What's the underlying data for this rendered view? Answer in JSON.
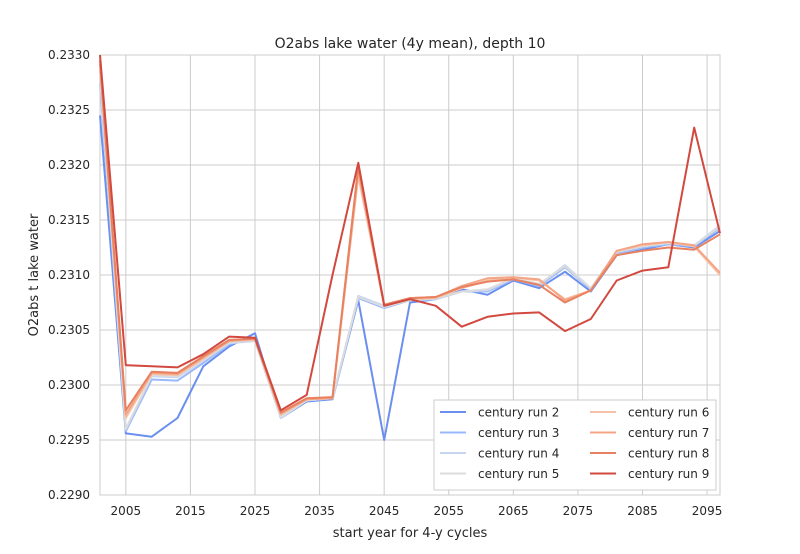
{
  "chart_data": {
    "type": "line",
    "title": "O2abs lake water (4y mean), depth 10",
    "xlabel": "start year for 4-y cycles",
    "ylabel": "O2abs t lake water",
    "xlim": [
      2001,
      2097
    ],
    "ylim": [
      0.229,
      0.233
    ],
    "x_ticks": [
      2005,
      2015,
      2025,
      2035,
      2045,
      2055,
      2065,
      2075,
      2085,
      2095
    ],
    "y_ticks": [
      0.229,
      0.2295,
      0.23,
      0.2305,
      0.231,
      0.2315,
      0.232,
      0.2325,
      0.233
    ],
    "x_tick_labels": [
      "2005",
      "2015",
      "2025",
      "2035",
      "2045",
      "2055",
      "2065",
      "2075",
      "2085",
      "2095"
    ],
    "y_tick_labels": [
      "0.2290",
      "0.2295",
      "0.2300",
      "0.2305",
      "0.2310",
      "0.2315",
      "0.2320",
      "0.2325",
      "0.2330"
    ],
    "grid": true,
    "legend_position": "lower-right",
    "legend_columns": 2,
    "x": [
      2001,
      2005,
      2009,
      2013,
      2017,
      2021,
      2025,
      2029,
      2033,
      2037,
      2041,
      2045,
      2049,
      2053,
      2057,
      2061,
      2065,
      2069,
      2073,
      2077,
      2081,
      2085,
      2089,
      2093,
      2097
    ],
    "series": [
      {
        "name": "century run 2",
        "color": "#6a8fef",
        "values": [
          0.23245,
          0.22956,
          0.22953,
          0.2297,
          0.23017,
          0.23035,
          0.23047,
          0.2297,
          0.22985,
          0.22987,
          0.23077,
          0.2295,
          0.23075,
          0.23078,
          0.23087,
          0.23082,
          0.23095,
          0.23088,
          0.23103,
          0.23085,
          0.23118,
          0.23123,
          0.23128,
          0.23125,
          0.2314
        ]
      },
      {
        "name": "century run 3",
        "color": "#9ab8fb",
        "values": [
          0.23275,
          0.22958,
          0.23005,
          0.23004,
          0.2302,
          0.23037,
          0.23043,
          0.22972,
          0.22986,
          0.22988,
          0.23079,
          0.2307,
          0.23077,
          0.23078,
          0.23085,
          0.23085,
          0.23096,
          0.2309,
          0.23107,
          0.23087,
          0.2312,
          0.23125,
          0.23128,
          0.23126,
          0.23143
        ]
      },
      {
        "name": "century run 4",
        "color": "#c6d6f0",
        "values": [
          0.2328,
          0.2296,
          0.23008,
          0.23007,
          0.23022,
          0.23038,
          0.2304,
          0.2297,
          0.22986,
          0.22988,
          0.23081,
          0.23072,
          0.23077,
          0.23078,
          0.23085,
          0.23086,
          0.23097,
          0.23091,
          0.23109,
          0.23088,
          0.23121,
          0.23126,
          0.23129,
          0.23127,
          0.23145
        ]
      },
      {
        "name": "century run 5",
        "color": "#dcdcdc",
        "values": [
          0.23285,
          0.2296,
          0.23009,
          0.23008,
          0.23023,
          0.23039,
          0.23041,
          0.22971,
          0.22986,
          0.22988,
          0.2308,
          0.23071,
          0.23077,
          0.23079,
          0.23085,
          0.23087,
          0.23097,
          0.23092,
          0.23108,
          0.23088,
          0.23121,
          0.23126,
          0.23129,
          0.23127,
          0.23144
        ]
      },
      {
        "name": "century run 6",
        "color": "#f5c2a8",
        "values": [
          0.2329,
          0.2297,
          0.2301,
          0.23009,
          0.23024,
          0.2304,
          0.23041,
          0.22973,
          0.22987,
          0.22988,
          0.2319,
          0.23072,
          0.23078,
          0.23079,
          0.23088,
          0.23095,
          0.23098,
          0.23095,
          0.23078,
          0.23086,
          0.23122,
          0.23127,
          0.2313,
          0.23126,
          0.231
        ]
      },
      {
        "name": "century run 7",
        "color": "#f4a585",
        "values": [
          0.23292,
          0.22973,
          0.23011,
          0.2301,
          0.23025,
          0.2304,
          0.23042,
          0.22974,
          0.22987,
          0.22988,
          0.23195,
          0.23072,
          0.23079,
          0.2308,
          0.2309,
          0.23097,
          0.23098,
          0.23096,
          0.23077,
          0.23086,
          0.23122,
          0.23128,
          0.2313,
          0.23127,
          0.23102
        ]
      },
      {
        "name": "century run 8",
        "color": "#e8815f",
        "values": [
          0.23295,
          0.22977,
          0.23012,
          0.23011,
          0.23026,
          0.23041,
          0.23042,
          0.22975,
          0.22988,
          0.22989,
          0.23199,
          0.23073,
          0.23079,
          0.2308,
          0.23089,
          0.23094,
          0.23096,
          0.23091,
          0.23075,
          0.23086,
          0.23118,
          0.23122,
          0.23125,
          0.23123,
          0.23137
        ]
      },
      {
        "name": "century run 9",
        "color": "#d1493f",
        "values": [
          0.233,
          0.23018,
          0.23017,
          0.23016,
          0.23028,
          0.23044,
          0.23043,
          0.22977,
          0.22991,
          0.231,
          0.23202,
          0.23072,
          0.23078,
          0.23072,
          0.23053,
          0.23062,
          0.23065,
          0.23066,
          0.23049,
          0.2306,
          0.23095,
          0.23104,
          0.23107,
          0.23234,
          0.23138
        ]
      }
    ]
  }
}
